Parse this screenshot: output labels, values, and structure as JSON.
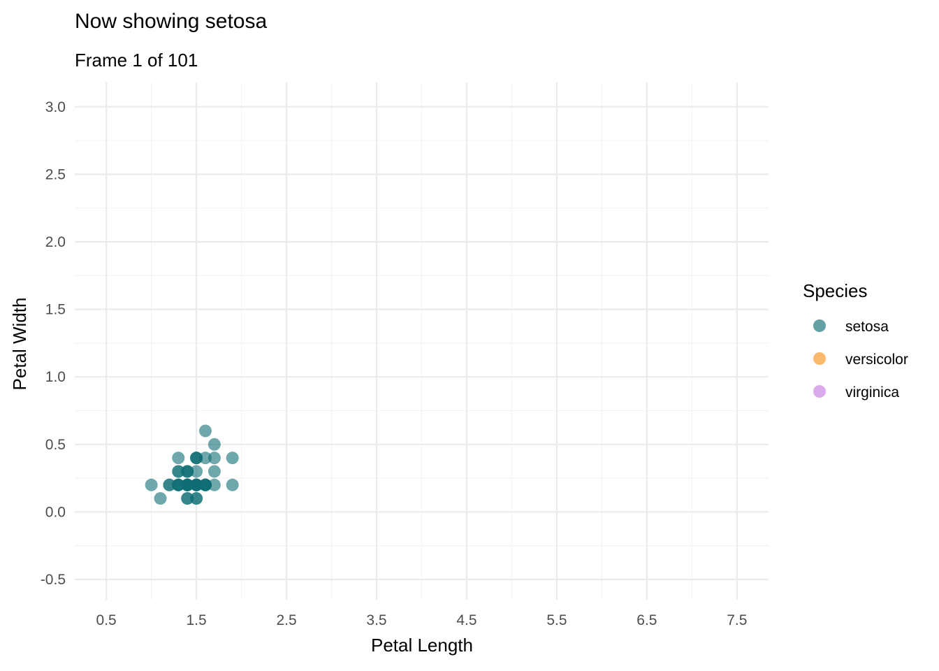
{
  "chart_data": {
    "type": "scatter",
    "title": "Now showing setosa",
    "subtitle": "Frame 1 of 101",
    "xlabel": "Petal Length",
    "ylabel": "Petal Width",
    "xlim": [
      0.15,
      7.85
    ],
    "ylim": [
      -0.65,
      3.18
    ],
    "x_ticks": [
      0.5,
      1.5,
      2.5,
      3.5,
      4.5,
      5.5,
      6.5,
      7.5
    ],
    "y_ticks": [
      -0.5,
      0.0,
      0.5,
      1.0,
      1.5,
      2.0,
      2.5,
      3.0
    ],
    "x_tick_labels": [
      "0.5",
      "1.5",
      "2.5",
      "3.5",
      "4.5",
      "5.5",
      "6.5",
      "7.5"
    ],
    "y_tick_labels": [
      "-0.5",
      "0.0",
      "0.5",
      "1.0",
      "1.5",
      "2.0",
      "2.5",
      "3.0"
    ],
    "grid": true,
    "legend": {
      "title": "Species",
      "placement": "right",
      "entries": [
        {
          "label": "setosa",
          "color": "#0f6e74"
        },
        {
          "label": "versicolor",
          "color": "#f7941d"
        },
        {
          "label": "virginica",
          "color": "#c77cde"
        }
      ]
    },
    "series": [
      {
        "name": "setosa",
        "color": "#0f6e74",
        "points": [
          [
            1.4,
            0.2
          ],
          [
            1.4,
            0.2
          ],
          [
            1.3,
            0.2
          ],
          [
            1.5,
            0.2
          ],
          [
            1.4,
            0.2
          ],
          [
            1.7,
            0.4
          ],
          [
            1.4,
            0.3
          ],
          [
            1.5,
            0.2
          ],
          [
            1.4,
            0.2
          ],
          [
            1.5,
            0.1
          ],
          [
            1.5,
            0.2
          ],
          [
            1.6,
            0.2
          ],
          [
            1.4,
            0.1
          ],
          [
            1.1,
            0.1
          ],
          [
            1.2,
            0.2
          ],
          [
            1.5,
            0.4
          ],
          [
            1.3,
            0.4
          ],
          [
            1.4,
            0.3
          ],
          [
            1.7,
            0.3
          ],
          [
            1.5,
            0.3
          ],
          [
            1.7,
            0.2
          ],
          [
            1.5,
            0.4
          ],
          [
            1.0,
            0.2
          ],
          [
            1.7,
            0.5
          ],
          [
            1.9,
            0.2
          ],
          [
            1.6,
            0.2
          ],
          [
            1.6,
            0.4
          ],
          [
            1.5,
            0.2
          ],
          [
            1.4,
            0.2
          ],
          [
            1.6,
            0.2
          ],
          [
            1.6,
            0.2
          ],
          [
            1.5,
            0.4
          ],
          [
            1.5,
            0.1
          ],
          [
            1.4,
            0.2
          ],
          [
            1.5,
            0.2
          ],
          [
            1.2,
            0.2
          ],
          [
            1.3,
            0.2
          ],
          [
            1.4,
            0.1
          ],
          [
            1.3,
            0.2
          ],
          [
            1.5,
            0.2
          ],
          [
            1.3,
            0.3
          ],
          [
            1.3,
            0.3
          ],
          [
            1.3,
            0.2
          ],
          [
            1.6,
            0.6
          ],
          [
            1.9,
            0.4
          ],
          [
            1.4,
            0.3
          ],
          [
            1.6,
            0.2
          ],
          [
            1.4,
            0.2
          ],
          [
            1.5,
            0.2
          ],
          [
            1.4,
            0.2
          ]
        ]
      }
    ]
  }
}
